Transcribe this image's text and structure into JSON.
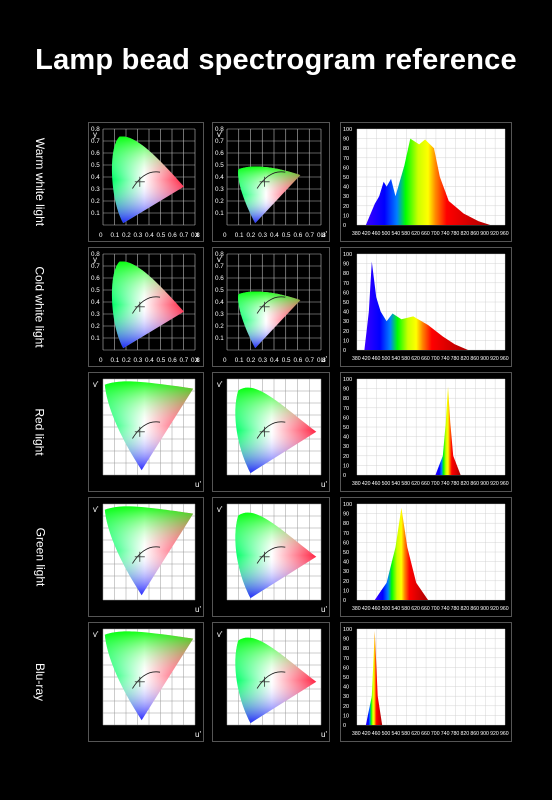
{
  "title": "Lamp bead spectrogram reference",
  "rows": [
    {
      "label": "Warm white light",
      "cie_style": "dark",
      "cie_xy_tick_labels": [
        "0",
        "0.1",
        "0.2",
        "0.3",
        "0.4",
        "0.5",
        "0.6",
        "0.7",
        "0.8"
      ],
      "cie_xy_axis": {
        "x": "x",
        "y": "y"
      },
      "cie_uv_tick_labels": [
        "0",
        "0.1",
        "0.2",
        "0.3",
        "0.4",
        "0.5",
        "0.6",
        "0.7",
        "0.8"
      ],
      "cie_uv_axis": {
        "x": "u'",
        "y": "v'"
      },
      "spectrum": {
        "x_ticks": [
          "380",
          "420",
          "460",
          "500",
          "540",
          "580",
          "620",
          "660",
          "700",
          "740",
          "780",
          "820",
          "860",
          "900",
          "920",
          "960"
        ],
        "y_ticks": [
          "0",
          "10",
          "20",
          "30",
          "40",
          "50",
          "60",
          "70",
          "80",
          "90",
          "100"
        ],
        "type": "warm"
      }
    },
    {
      "label": "Cold white light",
      "cie_style": "dark",
      "cie_xy_tick_labels": [
        "0",
        "0.1",
        "0.2",
        "0.3",
        "0.4",
        "0.5",
        "0.6",
        "0.7",
        "0.8"
      ],
      "cie_xy_axis": {
        "x": "x",
        "y": "y"
      },
      "cie_uv_tick_labels": [
        "0",
        "0.1",
        "0.2",
        "0.3",
        "0.4",
        "0.5",
        "0.6",
        "0.7",
        "0.8"
      ],
      "cie_uv_axis": {
        "x": "u'",
        "y": "v'"
      },
      "spectrum": {
        "x_ticks": [
          "380",
          "420",
          "460",
          "500",
          "540",
          "580",
          "620",
          "660",
          "700",
          "740",
          "780",
          "820",
          "860",
          "900",
          "920",
          "960"
        ],
        "y_ticks": [
          "0",
          "10",
          "20",
          "30",
          "40",
          "50",
          "60",
          "70",
          "80",
          "90",
          "100"
        ],
        "type": "cold"
      }
    },
    {
      "label": "Red light",
      "cie_style": "light",
      "cie_xy_axis": {
        "x": "u'",
        "y": "v'"
      },
      "cie_uv_axis": {
        "x": "u'",
        "y": "v'"
      },
      "spectrum": {
        "x_ticks": [
          "380",
          "420",
          "460",
          "500",
          "540",
          "580",
          "620",
          "660",
          "700",
          "740",
          "780",
          "820",
          "860",
          "900",
          "920",
          "960"
        ],
        "y_ticks": [
          "0",
          "10",
          "20",
          "30",
          "40",
          "50",
          "60",
          "70",
          "80",
          "90",
          "100"
        ],
        "type": "red"
      }
    },
    {
      "label": "Green light",
      "cie_style": "light",
      "cie_xy_axis": {
        "x": "u'",
        "y": "v'"
      },
      "cie_uv_axis": {
        "x": "u'",
        "y": "v'"
      },
      "spectrum": {
        "x_ticks": [
          "380",
          "420",
          "460",
          "500",
          "540",
          "580",
          "620",
          "660",
          "700",
          "740",
          "780",
          "820",
          "860",
          "900",
          "920",
          "960"
        ],
        "y_ticks": [
          "0",
          "10",
          "20",
          "30",
          "40",
          "50",
          "60",
          "70",
          "80",
          "90",
          "100"
        ],
        "type": "green"
      }
    },
    {
      "label": "Blu-ray",
      "cie_style": "light",
      "cie_xy_axis": {
        "x": "u'",
        "y": "v'"
      },
      "cie_uv_axis": {
        "x": "u'",
        "y": "v'"
      },
      "spectrum": {
        "x_ticks": [
          "380",
          "420",
          "460",
          "500",
          "540",
          "580",
          "620",
          "660",
          "700",
          "740",
          "780",
          "820",
          "860",
          "900",
          "920",
          "960"
        ],
        "y_ticks": [
          "0",
          "10",
          "20",
          "30",
          "40",
          "50",
          "60",
          "70",
          "80",
          "90",
          "100"
        ],
        "type": "blue"
      }
    }
  ]
}
